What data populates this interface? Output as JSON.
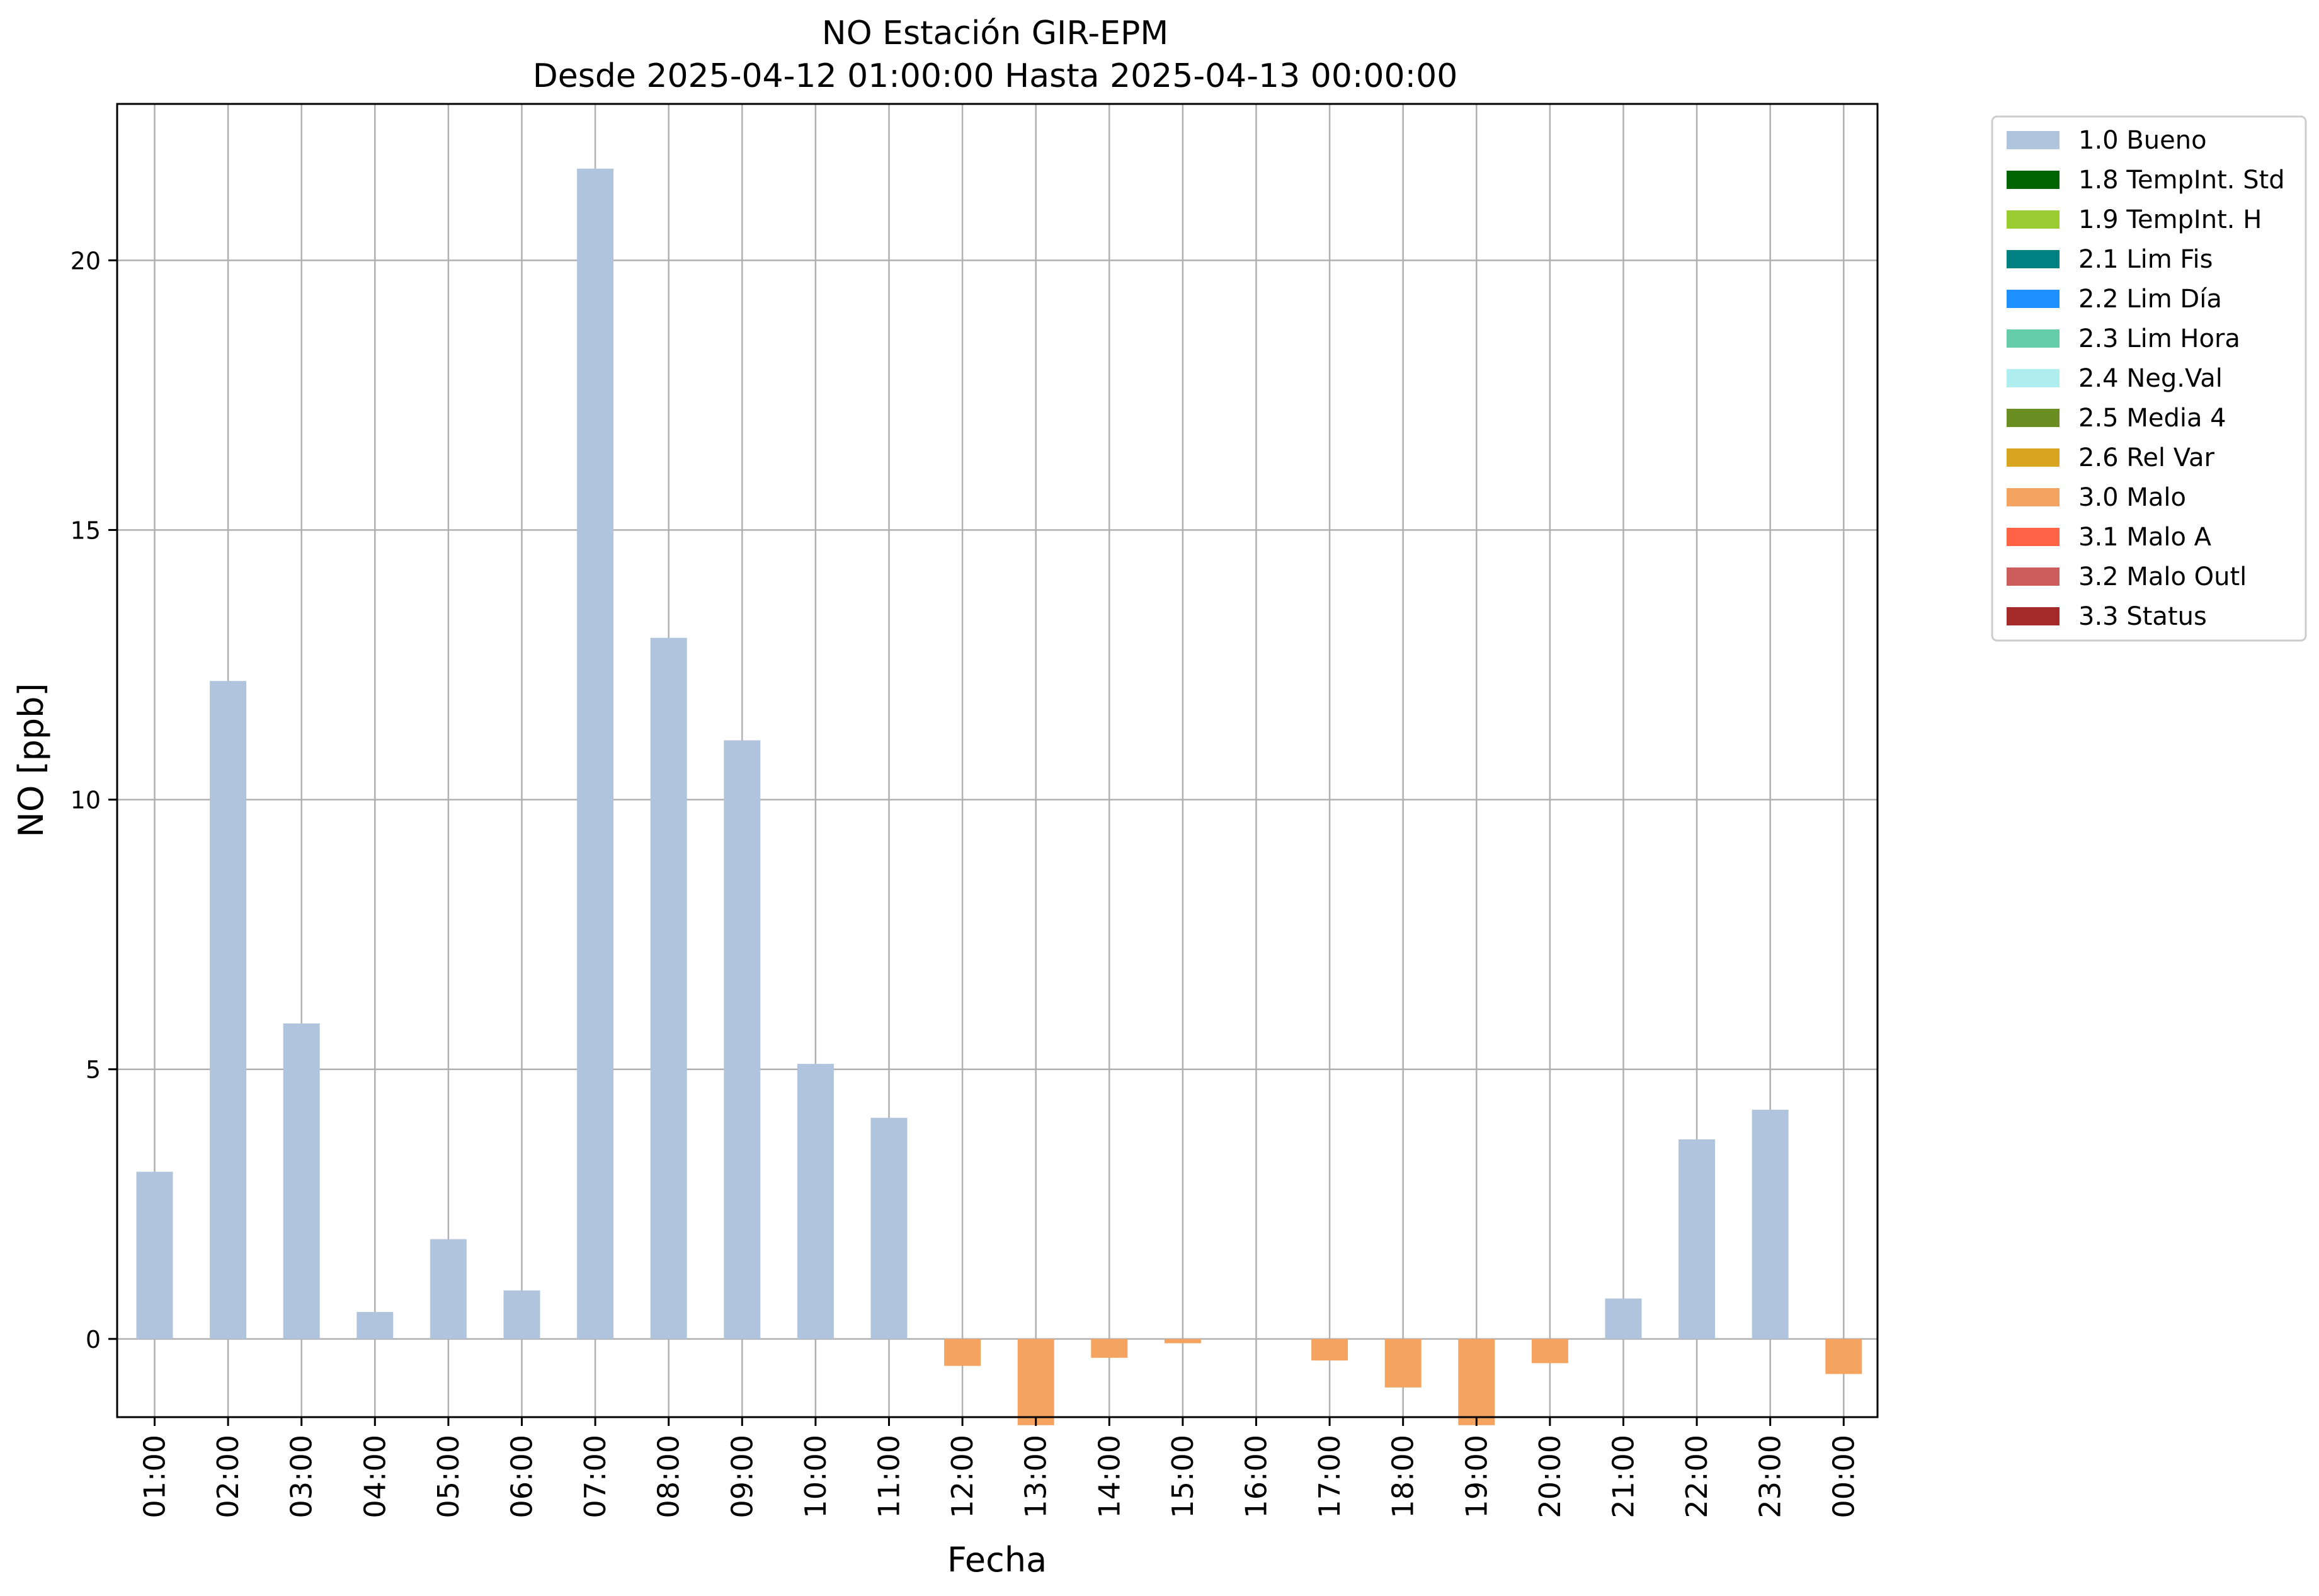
{
  "chart_data": {
    "type": "bar",
    "title": "NO Estación GIR-EPM",
    "subtitle": "Desde 2025-04-12 01:00:00 Hasta 2025-04-13 00:00:00",
    "xlabel": "Fecha",
    "ylabel": "NO [ppb]",
    "ylim": [
      -1.45,
      22.9
    ],
    "yticks": [
      0,
      5,
      10,
      15,
      20
    ],
    "grid": true,
    "legend_position": "outside-top-right",
    "categories": [
      "01:00",
      "02:00",
      "03:00",
      "04:00",
      "05:00",
      "06:00",
      "07:00",
      "08:00",
      "09:00",
      "10:00",
      "11:00",
      "12:00",
      "13:00",
      "14:00",
      "15:00",
      "16:00",
      "17:00",
      "18:00",
      "19:00",
      "20:00",
      "21:00",
      "22:00",
      "23:00",
      "00:00"
    ],
    "values": [
      3.1,
      12.2,
      5.85,
      0.5,
      1.85,
      0.9,
      21.7,
      13.0,
      11.1,
      5.1,
      4.1,
      -0.5,
      -1.6,
      -0.35,
      -0.08,
      0,
      -0.4,
      -0.9,
      -1.6,
      -0.45,
      0.75,
      3.7,
      4.25,
      -0.65
    ],
    "flags": [
      "1.0 Bueno",
      "1.0 Bueno",
      "1.0 Bueno",
      "1.0 Bueno",
      "1.0 Bueno",
      "1.0 Bueno",
      "1.0 Bueno",
      "1.0 Bueno",
      "1.0 Bueno",
      "1.0 Bueno",
      "1.0 Bueno",
      "3.0 Malo",
      "3.0 Malo",
      "3.0 Malo",
      "3.0 Malo",
      "",
      "3.0 Malo",
      "3.0 Malo",
      "3.0 Malo",
      "3.0 Malo",
      "1.0 Bueno",
      "1.0 Bueno",
      "1.0 Bueno",
      "3.0 Malo"
    ],
    "legend": [
      {
        "label": "1.0 Bueno",
        "color": "#b0c4de"
      },
      {
        "label": "1.8 TempInt. Std",
        "color": "#006400"
      },
      {
        "label": "1.9 TempInt. H",
        "color": "#9acd32"
      },
      {
        "label": "2.1 Lim Fis",
        "color": "#008080"
      },
      {
        "label": "2.2 Lim Día",
        "color": "#1e90ff"
      },
      {
        "label": "2.3 Lim Hora",
        "color": "#66cdaa"
      },
      {
        "label": "2.4 Neg.Val",
        "color": "#afeeee"
      },
      {
        "label": "2.5 Media 4",
        "color": "#6b8e23"
      },
      {
        "label": "2.6 Rel Var",
        "color": "#daa520"
      },
      {
        "label": "3.0 Malo",
        "color": "#f4a460"
      },
      {
        "label": "3.1 Malo A",
        "color": "#ff6347"
      },
      {
        "label": "3.2 Malo Outl",
        "color": "#cd5c5c"
      },
      {
        "label": "3.3 Status",
        "color": "#a52a2a"
      }
    ]
  }
}
